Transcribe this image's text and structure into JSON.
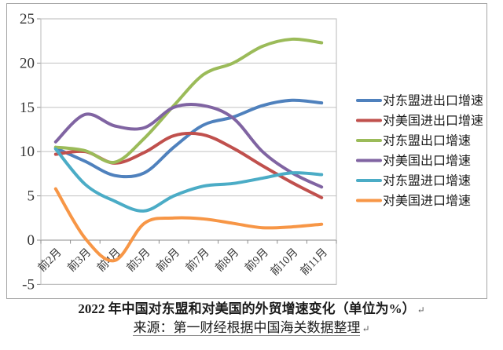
{
  "chart_data": {
    "type": "line",
    "smooth": true,
    "grid": true,
    "legend_position": "right",
    "categories": [
      "前2月",
      "前3月",
      "前4月",
      "前5月",
      "前6月",
      "前7月",
      "前8月",
      "前9月",
      "前10月",
      "前11月"
    ],
    "ylim": [
      -5,
      25
    ],
    "yticks": [
      25,
      20,
      15,
      10,
      5,
      0,
      -5
    ],
    "unit": "%",
    "series": [
      {
        "name": "对东盟进出口增速",
        "slug": "asean-total",
        "color": "#4F81BD",
        "values": [
          10.4,
          8.9,
          7.3,
          7.6,
          10.5,
          13.0,
          13.9,
          15.2,
          15.8,
          15.5
        ]
      },
      {
        "name": "对美国进出口增速",
        "slug": "us-total",
        "color": "#C0504D",
        "values": [
          9.7,
          10.0,
          8.7,
          9.9,
          11.8,
          11.9,
          10.4,
          8.4,
          6.5,
          4.8
        ]
      },
      {
        "name": "对东盟出口增速",
        "slug": "asean-export",
        "color": "#9BBB59",
        "values": [
          10.5,
          10.1,
          8.8,
          11.5,
          15.2,
          18.7,
          20.0,
          21.9,
          22.7,
          22.3
        ]
      },
      {
        "name": "对美国出口增速",
        "slug": "us-export",
        "color": "#8064A2",
        "values": [
          11.1,
          14.2,
          12.9,
          12.7,
          15.0,
          15.2,
          13.8,
          10.0,
          7.6,
          6.0
        ]
      },
      {
        "name": "对东盟进口增速",
        "slug": "asean-import",
        "color": "#4BACC6",
        "values": [
          10.3,
          6.3,
          4.4,
          3.3,
          5.0,
          6.1,
          6.4,
          7.0,
          7.6,
          7.4
        ]
      },
      {
        "name": "对美国进口增速",
        "slug": "us-import",
        "color": "#F79646",
        "values": [
          5.8,
          0.2,
          -2.3,
          1.9,
          2.5,
          2.4,
          1.9,
          1.4,
          1.5,
          1.8
        ]
      }
    ]
  },
  "caption": {
    "title": "2022 年中国对东盟和对美国的外贸增速变化（单位为%）",
    "source": "来源：第一财经根据中国海关数据整理",
    "paragraph_mark": "↵"
  },
  "colors": {
    "gridline": "#C9C9C9",
    "plot_border": "#BFBFBF",
    "axis": "#8C8C8C",
    "chart_border": "#A6A6A6",
    "label_text": "#333333",
    "legend_text": "#1c1c1c"
  }
}
